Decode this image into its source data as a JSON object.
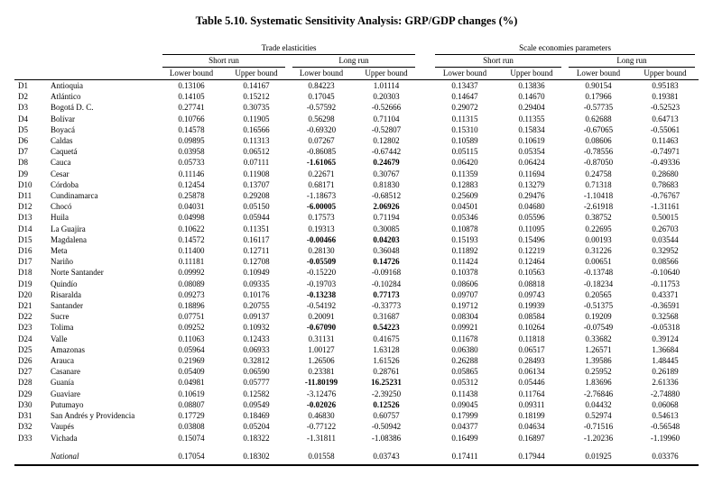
{
  "title": "Table 5.10. Systematic Sensitivity Analysis: GRP/GDP changes (%)",
  "table": {
    "groups": [
      {
        "label": "Trade elasticities",
        "subgroups": [
          "Short run",
          "Long run"
        ]
      },
      {
        "label": "Scale economies parameters",
        "subgroups": [
          "Short run",
          "Long run"
        ]
      }
    ],
    "bound_labels": [
      "Lower bound",
      "Upper bound"
    ],
    "rows": [
      {
        "id": "D1",
        "name": "Antioquia",
        "values": [
          "0.13106",
          "0.14167",
          "0.84223",
          "1.01114",
          "0.13437",
          "0.13836",
          "0.90154",
          "0.95183"
        ],
        "bold_lr": false
      },
      {
        "id": "D2",
        "name": "Atlántico",
        "values": [
          "0.14105",
          "0.15212",
          "0.17045",
          "0.20303",
          "0.14647",
          "0.14670",
          "0.17966",
          "0.19381"
        ],
        "bold_lr": false
      },
      {
        "id": "D3",
        "name": "Bogotá D. C.",
        "values": [
          "0.27741",
          "0.30735",
          "-0.57592",
          "-0.52666",
          "0.29072",
          "0.29404",
          "-0.57735",
          "-0.52523"
        ],
        "bold_lr": false
      },
      {
        "id": "D4",
        "name": "Bolívar",
        "values": [
          "0.10766",
          "0.11905",
          "0.56298",
          "0.71104",
          "0.11315",
          "0.11355",
          "0.62688",
          "0.64713"
        ],
        "bold_lr": false
      },
      {
        "id": "D5",
        "name": "Boyacá",
        "values": [
          "0.14578",
          "0.16566",
          "-0.69320",
          "-0.52807",
          "0.15310",
          "0.15834",
          "-0.67065",
          "-0.55061"
        ],
        "bold_lr": false
      },
      {
        "id": "D6",
        "name": "Caldas",
        "values": [
          "0.09895",
          "0.11313",
          "0.07267",
          "0.12802",
          "0.10589",
          "0.10619",
          "0.08606",
          "0.11463"
        ],
        "bold_lr": false
      },
      {
        "id": "D7",
        "name": "Caquetá",
        "values": [
          "0.03958",
          "0.06512",
          "-0.86085",
          "-0.67442",
          "0.05115",
          "0.05354",
          "-0.78556",
          "-0.74971"
        ],
        "bold_lr": false
      },
      {
        "id": "D8",
        "name": "Cauca",
        "values": [
          "0.05733",
          "0.07111",
          "-1.61065",
          "0.24679",
          "0.06420",
          "0.06424",
          "-0.87050",
          "-0.49336"
        ],
        "bold_lr": true
      },
      {
        "id": "D9",
        "name": "Cesar",
        "values": [
          "0.11146",
          "0.11908",
          "0.22671",
          "0.30767",
          "0.11359",
          "0.11694",
          "0.24758",
          "0.28680"
        ],
        "bold_lr": false
      },
      {
        "id": "D10",
        "name": "Córdoba",
        "values": [
          "0.12454",
          "0.13707",
          "0.68171",
          "0.81830",
          "0.12883",
          "0.13279",
          "0.71318",
          "0.78683"
        ],
        "bold_lr": false
      },
      {
        "id": "D11",
        "name": "Cundinamarca",
        "values": [
          "0.25878",
          "0.29208",
          "-1.18673",
          "-0.68512",
          "0.25609",
          "0.29476",
          "-1.10418",
          "-0.76767"
        ],
        "bold_lr": false
      },
      {
        "id": "D12",
        "name": "Chocó",
        "values": [
          "0.04031",
          "0.05150",
          "-6.00005",
          "2.06926",
          "0.04501",
          "0.04680",
          "-2.61918",
          "-1.31161"
        ],
        "bold_lr": true
      },
      {
        "id": "D13",
        "name": "Huila",
        "values": [
          "0.04998",
          "0.05944",
          "0.17573",
          "0.71194",
          "0.05346",
          "0.05596",
          "0.38752",
          "0.50015"
        ],
        "bold_lr": false
      },
      {
        "id": "D14",
        "name": "La Guajira",
        "values": [
          "0.10622",
          "0.11351",
          "0.19313",
          "0.30085",
          "0.10878",
          "0.11095",
          "0.22695",
          "0.26703"
        ],
        "bold_lr": false
      },
      {
        "id": "D15",
        "name": "Magdalena",
        "values": [
          "0.14572",
          "0.16117",
          "-0.00466",
          "0.04203",
          "0.15193",
          "0.15496",
          "0.00193",
          "0.03544"
        ],
        "bold_lr": true
      },
      {
        "id": "D16",
        "name": "Meta",
        "values": [
          "0.11400",
          "0.12711",
          "0.28130",
          "0.36048",
          "0.11892",
          "0.12219",
          "0.31226",
          "0.32952"
        ],
        "bold_lr": false
      },
      {
        "id": "D17",
        "name": "Nariño",
        "values": [
          "0.11181",
          "0.12708",
          "-0.05509",
          "0.14726",
          "0.11424",
          "0.12464",
          "0.00651",
          "0.08566"
        ],
        "bold_lr": true
      },
      {
        "id": "D18",
        "name": "Norte Santander",
        "values": [
          "0.09992",
          "0.10949",
          "-0.15220",
          "-0.09168",
          "0.10378",
          "0.10563",
          "-0.13748",
          "-0.10640"
        ],
        "bold_lr": false
      },
      {
        "id": "D19",
        "name": "Quindío",
        "values": [
          "0.08089",
          "0.09335",
          "-0.19703",
          "-0.10284",
          "0.08606",
          "0.08818",
          "-0.18234",
          "-0.11753"
        ],
        "bold_lr": false
      },
      {
        "id": "D20",
        "name": "Risaralda",
        "values": [
          "0.09273",
          "0.10176",
          "-0.13238",
          "0.77173",
          "0.09707",
          "0.09743",
          "0.20565",
          "0.43371"
        ],
        "bold_lr": true
      },
      {
        "id": "D21",
        "name": "Santander",
        "values": [
          "0.18896",
          "0.20755",
          "-0.54192",
          "-0.33773",
          "0.19712",
          "0.19939",
          "-0.51375",
          "-0.36591"
        ],
        "bold_lr": false
      },
      {
        "id": "D22",
        "name": "Sucre",
        "values": [
          "0.07751",
          "0.09137",
          "0.20091",
          "0.31687",
          "0.08304",
          "0.08584",
          "0.19209",
          "0.32568"
        ],
        "bold_lr": false
      },
      {
        "id": "D23",
        "name": "Tolima",
        "values": [
          "0.09252",
          "0.10932",
          "-0.67090",
          "0.54223",
          "0.09921",
          "0.10264",
          "-0.07549",
          "-0.05318"
        ],
        "bold_lr": true
      },
      {
        "id": "D24",
        "name": "Valle",
        "values": [
          "0.11063",
          "0.12433",
          "0.31131",
          "0.41675",
          "0.11678",
          "0.11818",
          "0.33682",
          "0.39124"
        ],
        "bold_lr": false
      },
      {
        "id": "D25",
        "name": "Amazonas",
        "values": [
          "0.05964",
          "0.06933",
          "1.00127",
          "1.63128",
          "0.06380",
          "0.06517",
          "1.26571",
          "1.36684"
        ],
        "bold_lr": false
      },
      {
        "id": "D26",
        "name": "Arauca",
        "values": [
          "0.21969",
          "0.32812",
          "1.26506",
          "1.61526",
          "0.26288",
          "0.28493",
          "1.39586",
          "1.48445"
        ],
        "bold_lr": false
      },
      {
        "id": "D27",
        "name": "Casanare",
        "values": [
          "0.05409",
          "0.06590",
          "0.23381",
          "0.28761",
          "0.05865",
          "0.06134",
          "0.25952",
          "0.26189"
        ],
        "bold_lr": false
      },
      {
        "id": "D28",
        "name": "Guanía",
        "values": [
          "0.04981",
          "0.05777",
          "-11.80199",
          "16.25231",
          "0.05312",
          "0.05446",
          "1.83696",
          "2.61336"
        ],
        "bold_lr": true
      },
      {
        "id": "D29",
        "name": "Guaviare",
        "values": [
          "0.10619",
          "0.12582",
          "-3.12476",
          "-2.39250",
          "0.11438",
          "0.11764",
          "-2.76846",
          "-2.74880"
        ],
        "bold_lr": false
      },
      {
        "id": "D30",
        "name": "Putumayo",
        "values": [
          "0.08807",
          "0.09549",
          "-0.02026",
          "0.12526",
          "0.09045",
          "0.09311",
          "0.04432",
          "0.06068"
        ],
        "bold_lr": true
      },
      {
        "id": "D31",
        "name": "San Andrés y Providencia",
        "values": [
          "0.17729",
          "0.18469",
          "0.46830",
          "0.60757",
          "0.17999",
          "0.18199",
          "0.52974",
          "0.54613"
        ],
        "bold_lr": false
      },
      {
        "id": "D32",
        "name": "Vaupés",
        "values": [
          "0.03808",
          "0.05204",
          "-0.77122",
          "-0.50942",
          "0.04377",
          "0.04634",
          "-0.71516",
          "-0.56548"
        ],
        "bold_lr": false
      },
      {
        "id": "D33",
        "name": "Vichada",
        "values": [
          "0.15074",
          "0.18322",
          "-1.31811",
          "-1.08386",
          "0.16499",
          "0.16897",
          "-1.20236",
          "-1.19960"
        ],
        "bold_lr": false
      }
    ],
    "national": {
      "label": "National",
      "values": [
        "0.17054",
        "0.18302",
        "0.01558",
        "0.03743",
        "0.17411",
        "0.17944",
        "0.01925",
        "0.03376"
      ]
    }
  }
}
